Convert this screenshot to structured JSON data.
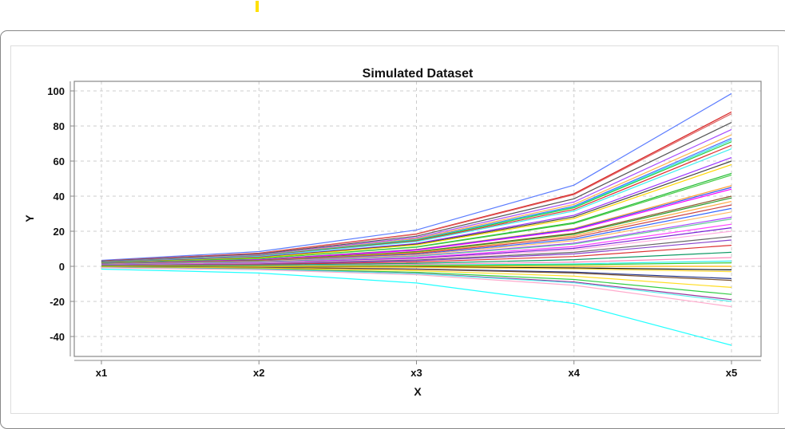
{
  "chart_data": {
    "type": "line",
    "title": "Simulated Dataset",
    "xlabel": "X",
    "ylabel": "Y",
    "categories": [
      "x1",
      "x2",
      "x3",
      "x4",
      "x5"
    ],
    "ylim": [
      -52,
      105
    ],
    "yticks": [
      100,
      80,
      60,
      40,
      20,
      0,
      -20,
      -40
    ],
    "grid": true,
    "legend": "none",
    "series": [
      {
        "color": "#5b7cff",
        "values": [
          3.4,
          8.4,
          20.7,
          46.3,
          98.5
        ]
      },
      {
        "color": "#d62020",
        "values": [
          3.1,
          7.5,
          18.5,
          41.4,
          88
        ]
      },
      {
        "color": "#e06060",
        "values": [
          3.0,
          7.4,
          18.3,
          40.9,
          87
        ]
      },
      {
        "color": "#555555",
        "values": [
          2.9,
          7.0,
          17.2,
          38.5,
          82
        ]
      },
      {
        "color": "#a64dff",
        "values": [
          2.7,
          6.6,
          16.4,
          36.7,
          78
        ]
      },
      {
        "color": "#ffb347",
        "values": [
          2.6,
          6.4,
          15.8,
          35.3,
          75
        ]
      },
      {
        "color": "#4a6cff",
        "values": [
          2.6,
          6.2,
          15.3,
          34.3,
          73
        ]
      },
      {
        "color": "#33e6e6",
        "values": [
          2.5,
          6.1,
          15.1,
          33.8,
          72
        ]
      },
      {
        "color": "#2ecc40",
        "values": [
          2.5,
          6.0,
          14.9,
          33.4,
          71
        ]
      },
      {
        "color": "#e03030",
        "values": [
          2.4,
          5.9,
          14.5,
          32.4,
          69
        ]
      },
      {
        "color": "#40f0f0",
        "values": [
          2.3,
          5.7,
          14.1,
          31.5,
          67
        ]
      },
      {
        "color": "#9933ff",
        "values": [
          2.2,
          5.3,
          13.0,
          29.1,
          62
        ]
      },
      {
        "color": "#444444",
        "values": [
          2.1,
          5.1,
          12.6,
          28.2,
          60
        ]
      },
      {
        "color": "#ffd700",
        "values": [
          2.0,
          4.9,
          12.2,
          27.3,
          58
        ]
      },
      {
        "color": "#22bb33",
        "values": [
          1.9,
          4.5,
          11.1,
          24.9,
          53
        ]
      },
      {
        "color": "#44cc44",
        "values": [
          1.8,
          4.4,
          10.9,
          24.4,
          52
        ]
      },
      {
        "color": "#ffa030",
        "values": [
          1.6,
          3.9,
          9.7,
          21.6,
          46
        ]
      },
      {
        "color": "#3355ee",
        "values": [
          1.6,
          3.8,
          9.5,
          21.2,
          45
        ]
      },
      {
        "color": "#ff00ff",
        "values": [
          1.5,
          3.7,
          9.2,
          20.7,
          44
        ]
      },
      {
        "color": "#8b5a2b",
        "values": [
          1.4,
          3.4,
          8.4,
          18.8,
          40
        ]
      },
      {
        "color": "#2e9e2e",
        "values": [
          1.4,
          3.3,
          8.2,
          18.3,
          39
        ]
      },
      {
        "color": "#ffaa44",
        "values": [
          1.3,
          3.1,
          7.8,
          17.4,
          37
        ]
      },
      {
        "color": "#cc4444",
        "values": [
          1.2,
          3.0,
          7.4,
          16.5,
          35
        ]
      },
      {
        "color": "#3366ff",
        "values": [
          1.2,
          2.8,
          6.9,
          15.5,
          33
        ]
      },
      {
        "color": "#ffbb66",
        "values": [
          1.1,
          2.6,
          6.5,
          14.6,
          31
        ]
      },
      {
        "color": "#aa44ff",
        "values": [
          1.0,
          2.4,
          5.9,
          13.2,
          28
        ]
      },
      {
        "color": "#66cc99",
        "values": [
          0.9,
          2.3,
          5.7,
          12.7,
          27
        ]
      },
      {
        "color": "#ff44ff",
        "values": [
          0.8,
          2.0,
          5.0,
          11.3,
          24
        ]
      },
      {
        "color": "#7a1fd6",
        "values": [
          0.8,
          1.9,
          4.6,
          10.3,
          22
        ]
      },
      {
        "color": "#ffaadd",
        "values": [
          0.7,
          1.7,
          4.2,
          9.4,
          20
        ]
      },
      {
        "color": "#666666",
        "values": [
          0.6,
          1.4,
          3.6,
          8.0,
          17
        ]
      },
      {
        "color": "#8844cc",
        "values": [
          0.5,
          1.3,
          3.2,
          7.1,
          15
        ]
      },
      {
        "color": "#dd3333",
        "values": [
          0.4,
          1.0,
          2.5,
          5.6,
          12
        ]
      },
      {
        "color": "#119966",
        "values": [
          0.3,
          0.7,
          1.7,
          3.8,
          8
        ]
      },
      {
        "color": "#ff88bb",
        "values": [
          0.2,
          0.4,
          1.1,
          2.4,
          5
        ]
      },
      {
        "color": "#33eeee",
        "values": [
          0.1,
          0.3,
          0.6,
          1.4,
          3
        ]
      },
      {
        "color": "#33cc33",
        "values": [
          0.1,
          0.2,
          0.4,
          0.9,
          2
        ]
      },
      {
        "color": "#ffb000",
        "values": [
          0,
          0,
          0,
          0,
          0
        ]
      },
      {
        "color": "#111111",
        "values": [
          -0.1,
          -0.2,
          -0.4,
          -0.9,
          -2
        ]
      },
      {
        "color": "#ffd633",
        "values": [
          -0.1,
          -0.3,
          -0.6,
          -1.4,
          -3
        ]
      },
      {
        "color": "#223388",
        "values": [
          -0.2,
          -0.6,
          -1.5,
          -3.3,
          -7
        ]
      },
      {
        "color": "#7a5230",
        "values": [
          -0.3,
          -0.7,
          -1.7,
          -3.8,
          -8
        ]
      },
      {
        "color": "#ffdd22",
        "values": [
          -0.4,
          -1.0,
          -2.5,
          -5.6,
          -12
        ]
      },
      {
        "color": "#33cc44",
        "values": [
          -0.6,
          -1.4,
          -3.4,
          -7.5,
          -16
        ]
      },
      {
        "color": "#993399",
        "values": [
          -0.7,
          -1.6,
          -4.0,
          -8.9,
          -19
        ]
      },
      {
        "color": "#55eeee",
        "values": [
          -0.7,
          -1.7,
          -4.2,
          -9.4,
          -20
        ]
      },
      {
        "color": "#ffaacc",
        "values": [
          -0.8,
          -2.0,
          -4.8,
          -10.8,
          -23
        ]
      },
      {
        "color": "#22ffff",
        "values": [
          -1.6,
          -3.8,
          -9.5,
          -21.2,
          -45
        ]
      }
    ]
  }
}
